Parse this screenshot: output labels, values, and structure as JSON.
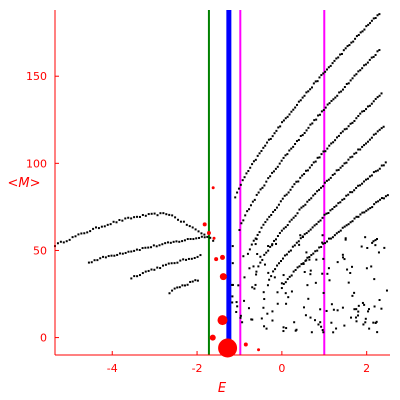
{
  "chart_data": {
    "type": "scatter",
    "xlabel": "E",
    "ylabel": "<M>",
    "xlim": [
      -5.35,
      2.55
    ],
    "ylim": [
      -10,
      188
    ],
    "grid": false,
    "colors": {
      "axis": "#ff0000",
      "points": "#000000",
      "highlight": "#ff0000"
    },
    "x_ticks": [
      {
        "value": -4,
        "label": "-4"
      },
      {
        "value": -2,
        "label": "-2"
      },
      {
        "value": 0,
        "label": "0"
      },
      {
        "value": 2,
        "label": "2"
      }
    ],
    "y_ticks": [
      {
        "value": 0,
        "label": "0"
      },
      {
        "value": 50,
        "label": "50"
      },
      {
        "value": 100,
        "label": "100"
      },
      {
        "value": 150,
        "label": "150"
      }
    ],
    "vertical_lines": [
      {
        "x": -1.72,
        "color": "#008000",
        "weight": 2
      },
      {
        "x": -1.25,
        "color": "#0000ff",
        "weight": 5
      },
      {
        "x": -0.98,
        "color": "#ff00ff",
        "weight": 2
      },
      {
        "x": 1.0,
        "color": "#ff00ff",
        "weight": 2
      }
    ],
    "bands": [
      {
        "x0": -5.35,
        "x1": -1.62,
        "y0": 53,
        "y1": 71,
        "curve": "upper-arc",
        "n": 55
      },
      {
        "x0": -4.55,
        "x1": -1.82,
        "y0": 43,
        "y1": 58,
        "curve": "rise",
        "n": 42
      },
      {
        "x0": -3.55,
        "x1": -1.92,
        "y0": 34,
        "y1": 47,
        "curve": "rise",
        "n": 25
      },
      {
        "x0": -2.65,
        "x1": -1.98,
        "y0": 26,
        "y1": 33,
        "curve": "rise",
        "n": 12
      },
      {
        "x0": -1.1,
        "x1": 2.3,
        "y0": 80,
        "y1": 186,
        "curve": "rise",
        "n": 78
      },
      {
        "x0": -1.0,
        "x1": 2.3,
        "y0": 62,
        "y1": 165,
        "curve": "rise",
        "n": 74
      },
      {
        "x0": -0.8,
        "x1": 2.35,
        "y0": 48,
        "y1": 140,
        "curve": "rise",
        "n": 70
      },
      {
        "x0": -0.6,
        "x1": 2.4,
        "y0": 38,
        "y1": 121,
        "curve": "rise",
        "n": 66
      },
      {
        "x0": -0.3,
        "x1": 2.45,
        "y0": 33,
        "y1": 100,
        "curve": "rise",
        "n": 60
      },
      {
        "x0": 0.0,
        "x1": 2.5,
        "y0": 28,
        "y1": 82,
        "curve": "rise",
        "n": 55
      }
    ],
    "cloud": {
      "x0": -1.2,
      "x1": 2.5,
      "y0": 3,
      "y1": 60,
      "n": 150
    },
    "highlight_points": [
      {
        "x": -1.82,
        "y": 65,
        "size": 3
      },
      {
        "x": -1.72,
        "y": 60,
        "size": 3
      },
      {
        "x": -1.62,
        "y": 86,
        "size": 2
      },
      {
        "x": -1.6,
        "y": 57,
        "size": 2
      },
      {
        "x": -1.55,
        "y": 45,
        "size": 3
      },
      {
        "x": -1.4,
        "y": 46,
        "size": 4
      },
      {
        "x": -1.38,
        "y": 35,
        "size": 6
      },
      {
        "x": -1.4,
        "y": 10,
        "size": 9
      },
      {
        "x": -1.63,
        "y": 0,
        "size": 5
      },
      {
        "x": -1.28,
        "y": -6,
        "size": 18
      },
      {
        "x": -0.85,
        "y": -4,
        "size": 3
      },
      {
        "x": -0.55,
        "y": -7,
        "size": 2
      }
    ]
  }
}
